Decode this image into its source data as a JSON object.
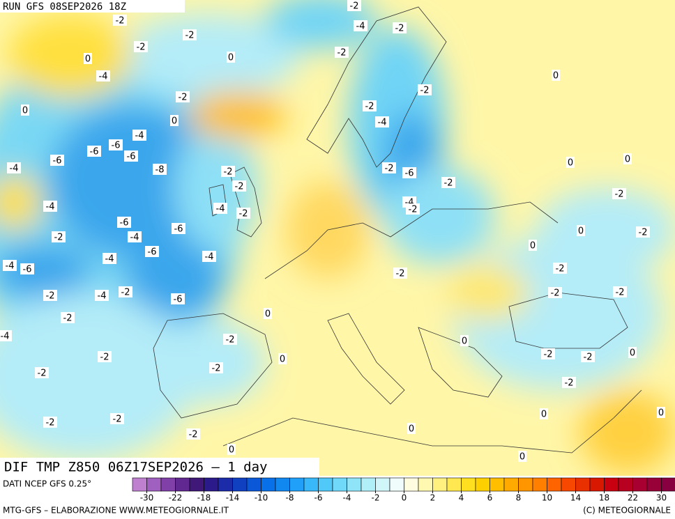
{
  "header": {
    "run": "RUN GFS 08SEP2026 18Z",
    "title": "DIF TMP Z850 06Z17SEP2026 – 1 day"
  },
  "contour_labels": [
    -2,
    -2,
    -2,
    -2,
    -4,
    -2,
    0,
    0,
    -2,
    0,
    -4,
    -2,
    -2,
    0,
    -2,
    0,
    -4,
    -4,
    -6,
    -6,
    -6,
    -6,
    -4,
    -8,
    0,
    0,
    -2,
    -6,
    -2,
    -2,
    -2,
    -2,
    -4,
    -4,
    -2,
    -4,
    -2,
    -6,
    -6,
    0,
    -2,
    -2,
    -4,
    0,
    -6,
    -4,
    -4,
    -4,
    -6,
    -2,
    -2,
    -2,
    -4,
    -2,
    -2,
    -2,
    -6,
    0,
    -2,
    -4,
    -2,
    0,
    -2,
    0,
    -2,
    -2,
    0,
    -2,
    -2,
    -2,
    -2,
    -2,
    0,
    0,
    0,
    -2,
    0,
    0
  ],
  "colorbar": {
    "source": "DATI NCEP GFS 0.25°",
    "colors": [
      "#c080d0",
      "#a060c0",
      "#8040a8",
      "#602890",
      "#401878",
      "#2a1a8a",
      "#1c2ca8",
      "#1040c0",
      "#0a58d8",
      "#0870e8",
      "#1088f0",
      "#20a0f8",
      "#38b8f8",
      "#50c8f8",
      "#70d8f8",
      "#90e4f8",
      "#b0eef8",
      "#d0f6fa",
      "#f0fcfc",
      "#fffce0",
      "#fff8b0",
      "#fff080",
      "#ffe850",
      "#ffe020",
      "#ffd000",
      "#ffbe00",
      "#ffaa00",
      "#ff9600",
      "#ff8000",
      "#ff6400",
      "#f84800",
      "#e83000",
      "#d81800",
      "#c80010",
      "#b80020",
      "#a80030",
      "#980038",
      "#880040"
    ],
    "ticks": [
      -30,
      -22,
      -18,
      -14,
      -10,
      -8,
      -6,
      -4,
      -2,
      0,
      2,
      4,
      6,
      8,
      10,
      14,
      18,
      22,
      30
    ]
  },
  "footer": {
    "left": "MTG-GFS – ELABORAZIONE WWW.METEOGIORNALE.IT",
    "right": "(C) METEOGIORNALE"
  }
}
